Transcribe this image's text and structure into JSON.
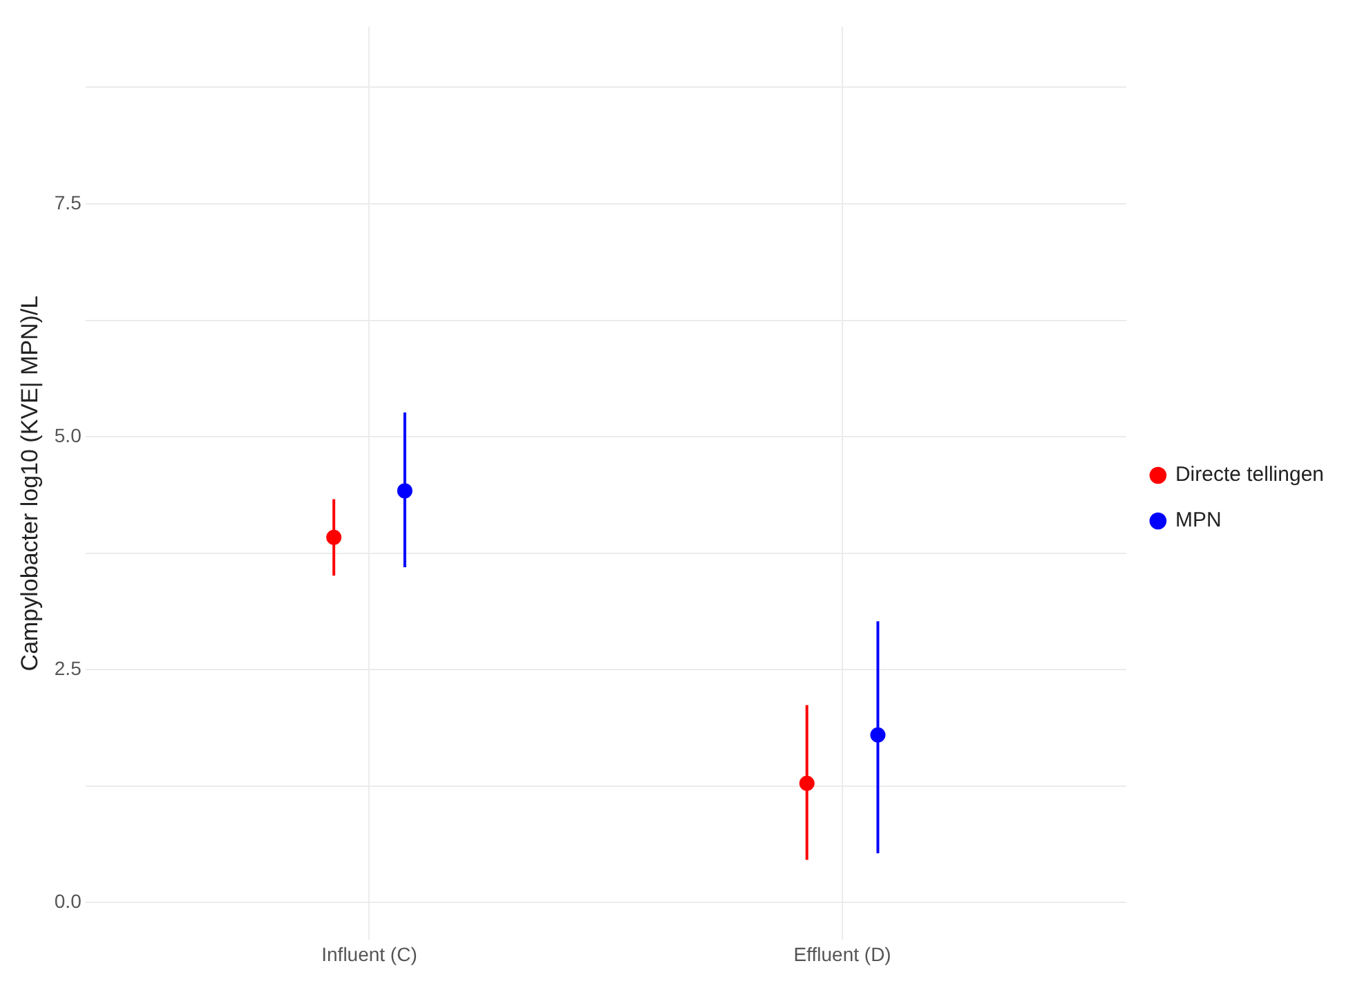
{
  "chart_data": {
    "type": "scatter",
    "ylabel": "Campylobacter log10 (KVE| MPN)/L",
    "categories": [
      "Influent (C)",
      "Effluent (D)"
    ],
    "series": [
      {
        "name": "Directe tellingen",
        "color": "#ff0000",
        "values": [
          3.92,
          1.28
        ],
        "errors": [
          [
            3.51,
            4.33
          ],
          [
            0.46,
            2.12
          ]
        ]
      },
      {
        "name": "MPN",
        "color": "#0000ff",
        "values": [
          4.42,
          1.8
        ],
        "errors": [
          [
            3.6,
            5.26
          ],
          [
            0.53,
            3.02
          ]
        ]
      }
    ],
    "ylim": [
      -0.4,
      9.4
    ],
    "yticks": [
      {
        "value": 0,
        "label": "0.0"
      },
      {
        "value": 1.25,
        "label": null
      },
      2.5,
      {
        "value": 3.75,
        "label": null
      },
      {
        "value": 5,
        "label": "5.0"
      },
      {
        "value": 6.25,
        "label": null
      },
      7.5,
      {
        "value": 8.75,
        "label": null
      }
    ],
    "grid": true,
    "legend": "right",
    "marker": "circle"
  }
}
